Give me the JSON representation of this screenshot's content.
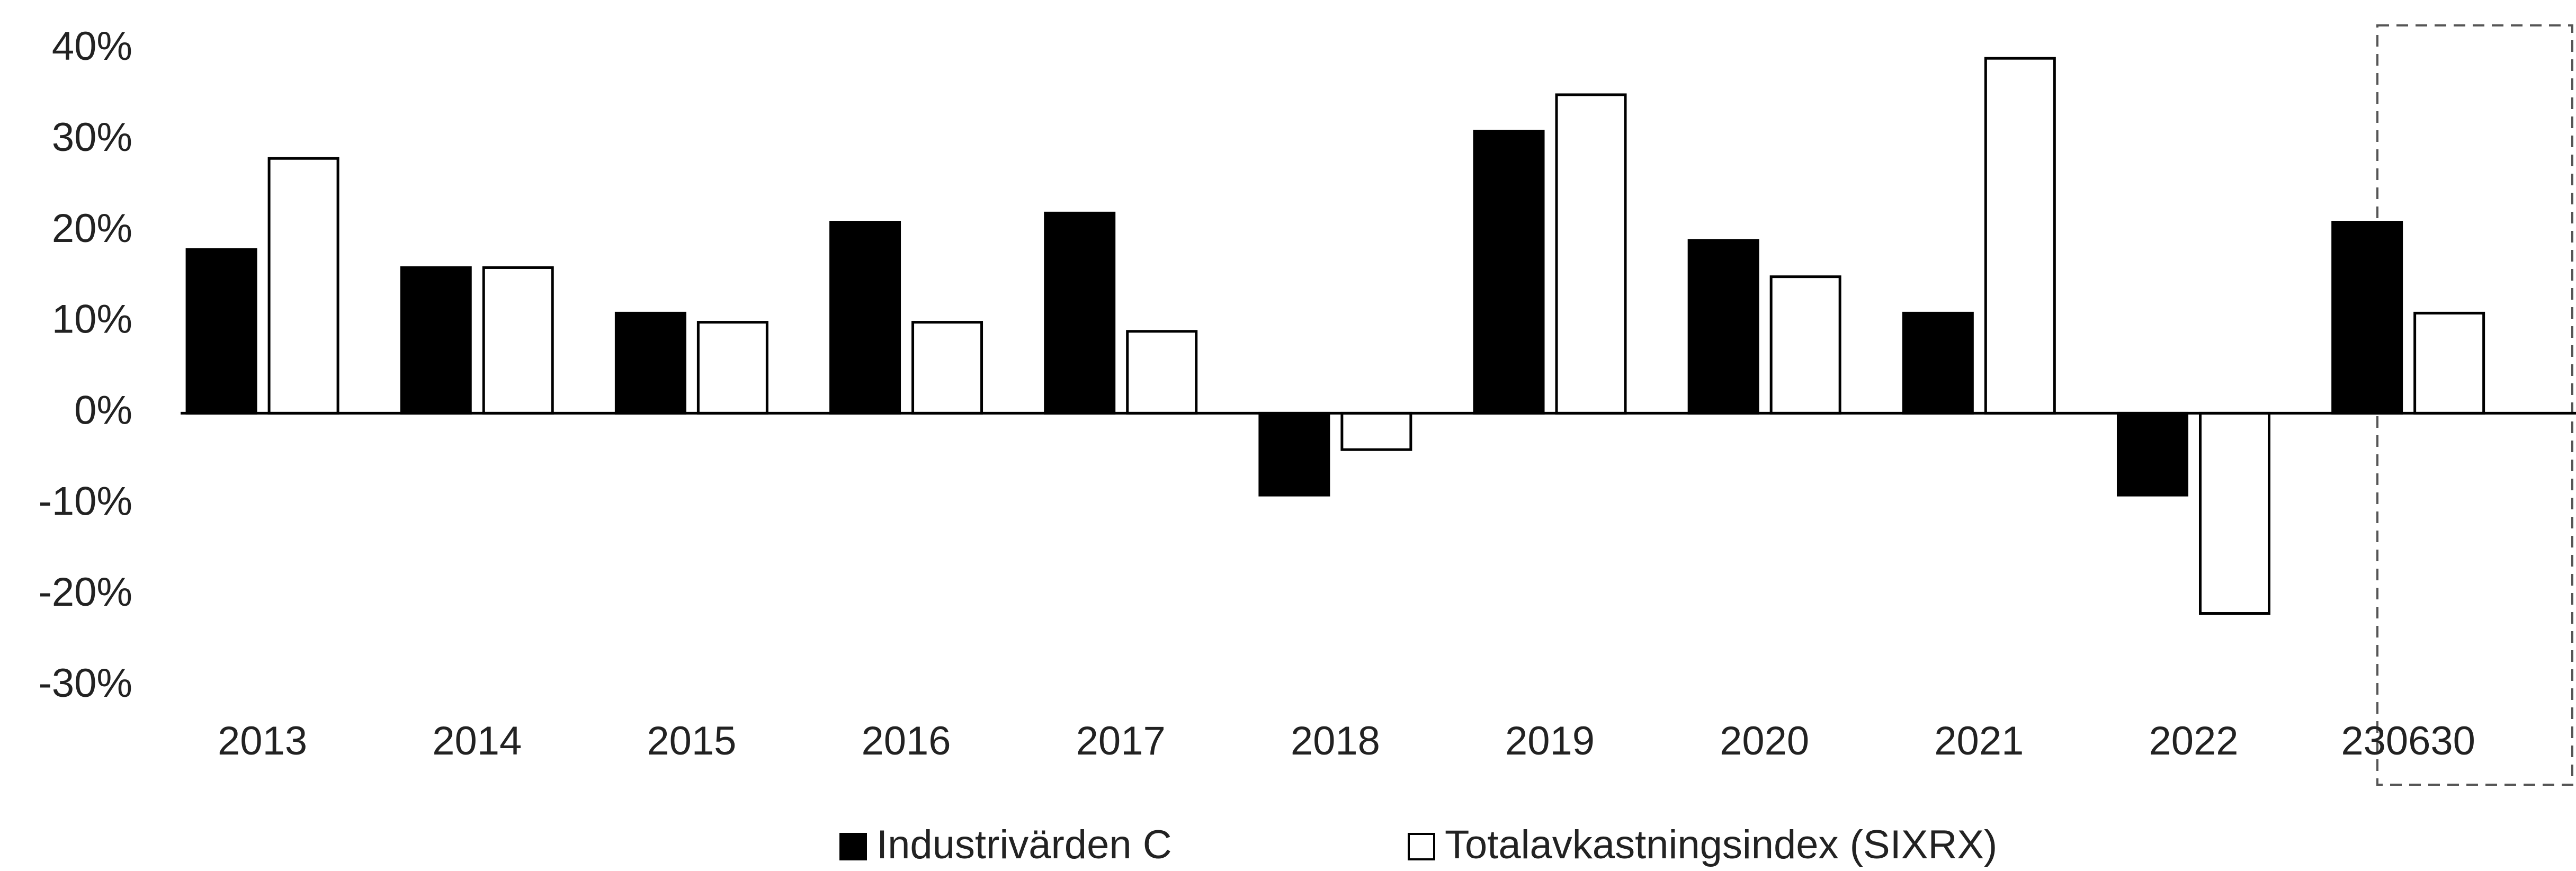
{
  "chart_data": {
    "type": "bar",
    "categories": [
      "2013",
      "2014",
      "2015",
      "2016",
      "2017",
      "2018",
      "2019",
      "2020",
      "2021",
      "2022",
      "230630"
    ],
    "series": [
      {
        "name": "Industrivärden C",
        "color": "#000000",
        "values": [
          18,
          16,
          11,
          21,
          22,
          -9,
          31,
          19,
          11,
          -9,
          21
        ]
      },
      {
        "name": "Totalavkastningsindex (SIXRX)",
        "color": "#ffffff",
        "values": [
          28,
          16,
          10,
          10,
          9,
          -4,
          35,
          15,
          39,
          -22,
          11
        ]
      }
    ],
    "ylim": [
      -30,
      40
    ],
    "yticks": [
      {
        "value": -30,
        "label": "-30%"
      },
      {
        "value": -20,
        "label": "-20%"
      },
      {
        "value": -10,
        "label": "-10%"
      },
      {
        "value": 0,
        "label": "0%"
      },
      {
        "value": 10,
        "label": "10%"
      },
      {
        "value": 20,
        "label": "20%"
      },
      {
        "value": 30,
        "label": "30%"
      },
      {
        "value": 40,
        "label": "40%"
      }
    ],
    "grid": false,
    "legend": "bottom"
  }
}
